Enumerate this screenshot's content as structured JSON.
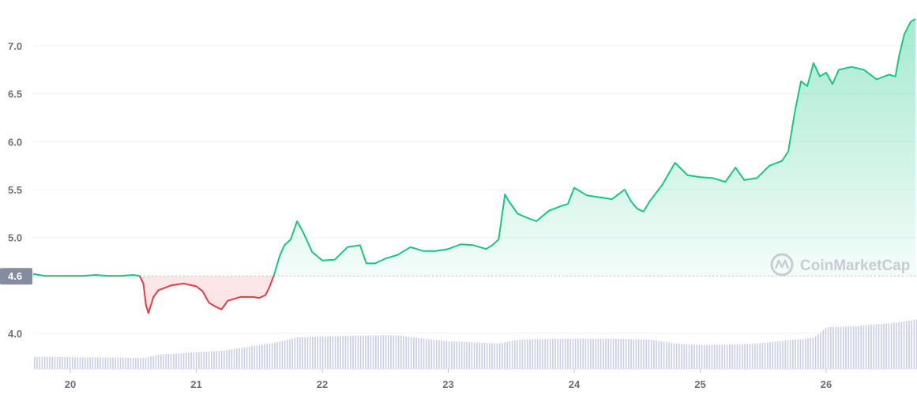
{
  "chart_data": {
    "type": "area",
    "title": "",
    "xlabel": "",
    "ylabel": "",
    "x_ticks": [
      "20",
      "21",
      "22",
      "23",
      "24",
      "25",
      "26"
    ],
    "y_ticks": [
      "4.0",
      "5.0",
      "5.5",
      "6.0",
      "6.5",
      "7.0"
    ],
    "ylim": [
      3.8,
      7.3
    ],
    "xlim": [
      19.7,
      26.7
    ],
    "baseline": {
      "value": 4.6,
      "label": "4.6"
    },
    "grid": true,
    "watermark": "CoinMarketCap",
    "colors": {
      "up": "#16c784",
      "down": "#ea3943",
      "volume": "#c9cde6",
      "grid": "#eff2f5",
      "axis_text": "#6b7080",
      "badge": "#858ca2"
    },
    "price_series": {
      "x": [
        19.7,
        19.8,
        19.9,
        20.0,
        20.1,
        20.2,
        20.3,
        20.4,
        20.5,
        20.55,
        20.58,
        20.6,
        20.62,
        20.66,
        20.7,
        20.8,
        20.9,
        21.0,
        21.05,
        21.1,
        21.15,
        21.2,
        21.25,
        21.35,
        21.45,
        21.5,
        21.55,
        21.58,
        21.62,
        21.66,
        21.7,
        21.75,
        21.8,
        21.85,
        21.92,
        22.0,
        22.1,
        22.2,
        22.3,
        22.35,
        22.42,
        22.5,
        22.6,
        22.7,
        22.8,
        22.9,
        23.0,
        23.1,
        23.2,
        23.3,
        23.35,
        23.4,
        23.45,
        23.48,
        23.55,
        23.6,
        23.7,
        23.8,
        23.9,
        23.95,
        24.0,
        24.1,
        24.2,
        24.3,
        24.4,
        24.45,
        24.5,
        24.55,
        24.6,
        24.7,
        24.8,
        24.9,
        25.0,
        25.1,
        25.2,
        25.28,
        25.35,
        25.45,
        25.55,
        25.65,
        25.7,
        25.75,
        25.8,
        25.85,
        25.9,
        25.95,
        26.0,
        26.05,
        26.1,
        26.2,
        26.3,
        26.4,
        26.5,
        26.55,
        26.58,
        26.62,
        26.67,
        26.7
      ],
      "y": [
        4.62,
        4.6,
        4.6,
        4.6,
        4.6,
        4.61,
        4.6,
        4.6,
        4.61,
        4.6,
        4.52,
        4.3,
        4.21,
        4.38,
        4.45,
        4.5,
        4.52,
        4.49,
        4.44,
        4.32,
        4.28,
        4.25,
        4.34,
        4.38,
        4.38,
        4.37,
        4.4,
        4.48,
        4.62,
        4.8,
        4.92,
        4.98,
        5.17,
        5.05,
        4.85,
        4.76,
        4.77,
        4.9,
        4.92,
        4.73,
        4.73,
        4.78,
        4.82,
        4.9,
        4.86,
        4.86,
        4.88,
        4.93,
        4.92,
        4.88,
        4.92,
        4.98,
        5.45,
        5.38,
        5.25,
        5.22,
        5.17,
        5.28,
        5.33,
        5.35,
        5.52,
        5.44,
        5.42,
        5.4,
        5.5,
        5.38,
        5.3,
        5.27,
        5.38,
        5.55,
        5.78,
        5.65,
        5.63,
        5.62,
        5.58,
        5.73,
        5.6,
        5.62,
        5.75,
        5.8,
        5.9,
        6.3,
        6.63,
        6.58,
        6.82,
        6.68,
        6.72,
        6.6,
        6.75,
        6.78,
        6.75,
        6.65,
        6.7,
        6.68,
        6.9,
        7.12,
        7.25,
        7.28
      ]
    },
    "volume_series": {
      "x": [
        19.7,
        20.0,
        20.4,
        20.58,
        20.7,
        20.9,
        21.1,
        21.2,
        21.4,
        21.6,
        21.8,
        22.0,
        22.2,
        22.4,
        22.5,
        22.6,
        22.8,
        23.0,
        23.2,
        23.4,
        23.5,
        23.6,
        24.0,
        24.4,
        24.6,
        24.8,
        25.0,
        25.2,
        25.4,
        25.6,
        25.7,
        25.8,
        25.9,
        26.0,
        26.2,
        26.4,
        26.5,
        26.6,
        26.7
      ],
      "y": [
        0.32,
        0.31,
        0.3,
        0.29,
        0.38,
        0.42,
        0.46,
        0.48,
        0.58,
        0.68,
        0.83,
        0.86,
        0.87,
        0.88,
        0.89,
        0.88,
        0.8,
        0.73,
        0.7,
        0.67,
        0.74,
        0.78,
        0.8,
        0.79,
        0.77,
        0.67,
        0.63,
        0.64,
        0.66,
        0.72,
        0.76,
        0.78,
        0.83,
        1.1,
        1.12,
        1.18,
        1.2,
        1.24,
        1.3
      ]
    }
  }
}
